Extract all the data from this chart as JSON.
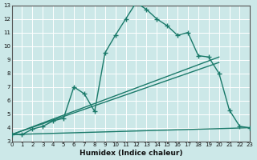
{
  "xlabel": "Humidex (Indice chaleur)",
  "ylabel": "",
  "bg_color": "#cce8e8",
  "grid_color": "#ffffff",
  "line_color": "#1a7a6a",
  "xlim": [
    0,
    23
  ],
  "ylim": [
    3,
    13
  ],
  "xticks": [
    0,
    1,
    2,
    3,
    4,
    5,
    6,
    7,
    8,
    9,
    10,
    11,
    12,
    13,
    14,
    15,
    16,
    17,
    18,
    19,
    20,
    21,
    22,
    23
  ],
  "yticks": [
    3,
    4,
    5,
    6,
    7,
    8,
    9,
    10,
    11,
    12,
    13
  ],
  "series1_x": [
    0,
    1,
    2,
    3,
    4,
    5,
    6,
    7,
    8,
    9,
    10,
    11,
    12,
    13,
    14,
    15,
    16,
    17,
    18,
    19,
    20,
    21,
    22,
    23
  ],
  "series1_y": [
    3.5,
    3.5,
    3.9,
    4.1,
    4.5,
    4.7,
    7.0,
    6.5,
    5.2,
    9.5,
    10.8,
    12.0,
    13.2,
    12.7,
    12.0,
    11.5,
    10.8,
    11.0,
    9.3,
    9.2,
    8.0,
    5.3,
    4.1,
    4.0
  ],
  "series2_x": [
    0,
    23
  ],
  "series2_y": [
    3.5,
    4.0
  ],
  "series3_x": [
    0,
    20
  ],
  "series3_y": [
    3.5,
    9.2
  ],
  "series4_x": [
    0,
    20
  ],
  "series4_y": [
    3.5,
    8.8
  ]
}
